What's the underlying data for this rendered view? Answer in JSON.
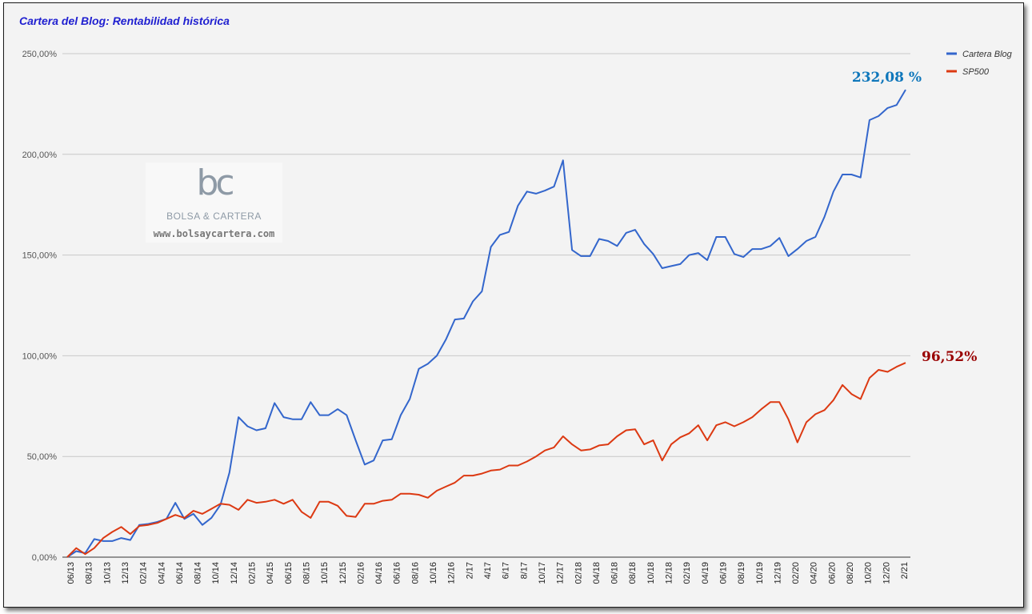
{
  "chart_data": {
    "type": "line",
    "title": "Cartera del Blog: Rentabilidad histórica",
    "xlabel": "",
    "ylabel": "",
    "ylim": [
      0,
      250
    ],
    "y_ticks": [
      "0,00%",
      "50,00%",
      "100,00%",
      "150,00%",
      "200,00%",
      "250,00%"
    ],
    "y_tick_values": [
      0,
      50,
      100,
      150,
      200,
      250
    ],
    "x_tick_labels": [
      "06/13",
      "08/13",
      "10/13",
      "12/13",
      "02/14",
      "04/14",
      "06/14",
      "08/14",
      "10/14",
      "12/14",
      "02/15",
      "04/15",
      "06/15",
      "08/15",
      "10/15",
      "12/15",
      "02/16",
      "04/16",
      "06/16",
      "08/16",
      "10/16",
      "12/16",
      "2/17",
      "4/17",
      "6/17",
      "8/17",
      "10/17",
      "12/17",
      "02/18",
      "04/18",
      "06/18",
      "08/18",
      "10/18",
      "12/18",
      "02/19",
      "04/19",
      "06/19",
      "08/19",
      "10/19",
      "12/19",
      "02/20",
      "04/20",
      "06/20",
      "08/20",
      "10/20",
      "12/20",
      "2/21"
    ],
    "grid": true,
    "legend_position": "top-right",
    "series": [
      {
        "name": "Cartera Blog",
        "color": "#3366cc",
        "values": [
          0,
          3,
          2,
          9,
          8,
          8,
          9.5,
          8.5,
          16,
          16.5,
          17.5,
          19,
          27,
          19,
          21.5,
          16,
          19.5,
          26,
          42,
          69.5,
          65,
          63,
          64,
          76.5,
          69.5,
          68.5,
          68.5,
          77,
          70.5,
          70.5,
          73.5,
          70.5,
          58,
          46,
          48,
          58,
          58.5,
          70.5,
          78.5,
          93.5,
          96,
          100,
          108,
          118,
          118.5,
          127,
          132,
          154,
          160,
          161.5,
          174.5,
          181.5,
          180.5,
          182,
          184,
          197,
          152.5,
          149.5,
          149.5,
          158,
          157,
          154.5,
          161,
          162.5,
          155.5,
          150.5,
          143.5,
          144.5,
          145.5,
          150,
          151,
          147.5,
          159,
          159,
          150.5,
          149,
          153,
          153,
          154.5,
          158.5,
          149.5,
          153,
          157,
          159,
          169,
          181.5,
          190,
          190,
          188.5,
          217,
          219,
          223,
          224.5,
          232.08
        ]
      },
      {
        "name": "SP500",
        "color": "#dc3912",
        "values": [
          0,
          4.5,
          1.5,
          4.5,
          9.5,
          12.5,
          15,
          11.5,
          15.5,
          16,
          17,
          19,
          21,
          19.5,
          23,
          21.5,
          24,
          26.5,
          26,
          23.5,
          28.5,
          27,
          27.5,
          28.5,
          26.5,
          28.5,
          22.5,
          19.5,
          27.5,
          27.5,
          25.5,
          20.5,
          20,
          26.5,
          26.5,
          28,
          28.5,
          31.5,
          31.5,
          31,
          29.5,
          33,
          35,
          37,
          40.5,
          40.5,
          41.5,
          43,
          43.5,
          45.5,
          45.5,
          47.5,
          50,
          53,
          54.5,
          60,
          56,
          53,
          53.5,
          55.5,
          56,
          60,
          63,
          63.5,
          56,
          58,
          48,
          56,
          59.5,
          61.5,
          65.5,
          58,
          65.5,
          67,
          65,
          67,
          69.5,
          73.5,
          77,
          77,
          68.5,
          57,
          67,
          71,
          73,
          78,
          85.5,
          81,
          78.5,
          89,
          93,
          92,
          94.5,
          96.52
        ]
      }
    ],
    "annotations": [
      {
        "text": "232,08 %",
        "series": "Cartera Blog",
        "color": "#0f77bb"
      },
      {
        "text": "96,52%",
        "series": "SP500",
        "color": "#990000"
      }
    ]
  },
  "watermark": {
    "mark": "bc",
    "name": "BOLSA & CARTERA",
    "url": "www.bolsaycartera.com"
  }
}
